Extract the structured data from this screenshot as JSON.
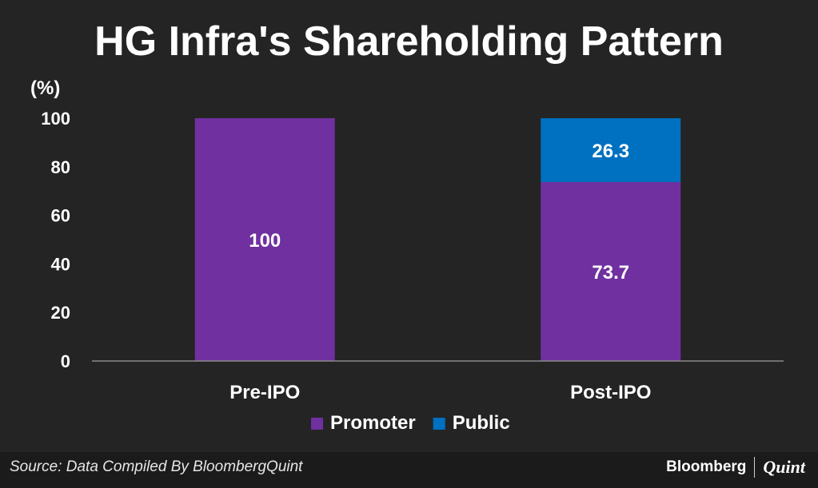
{
  "chart_data": {
    "type": "bar",
    "stacked": true,
    "title": "HG Infra's Shareholding Pattern",
    "ylabel": "(%)",
    "xlabel": "",
    "ylim": [
      0,
      100
    ],
    "yticks": [
      0,
      20,
      40,
      60,
      80,
      100
    ],
    "categories": [
      "Pre-IPO",
      "Post-IPO"
    ],
    "series": [
      {
        "name": "Promoter",
        "color": "#7030a0",
        "values": [
          100,
          73.7
        ],
        "labels": [
          "100",
          "73.7"
        ]
      },
      {
        "name": "Public",
        "color": "#0070c0",
        "values": [
          0,
          26.3
        ],
        "labels": [
          "",
          "26.3"
        ]
      }
    ],
    "legend": "bottom",
    "grid": false
  },
  "footer": {
    "source": "Source: Data Compiled By BloombergQuint",
    "brand_primary": "Bloomberg",
    "brand_secondary": "Quint"
  },
  "colors": {
    "background": "#242424",
    "text": "#ffffff",
    "axis": "#8a8a8a"
  }
}
